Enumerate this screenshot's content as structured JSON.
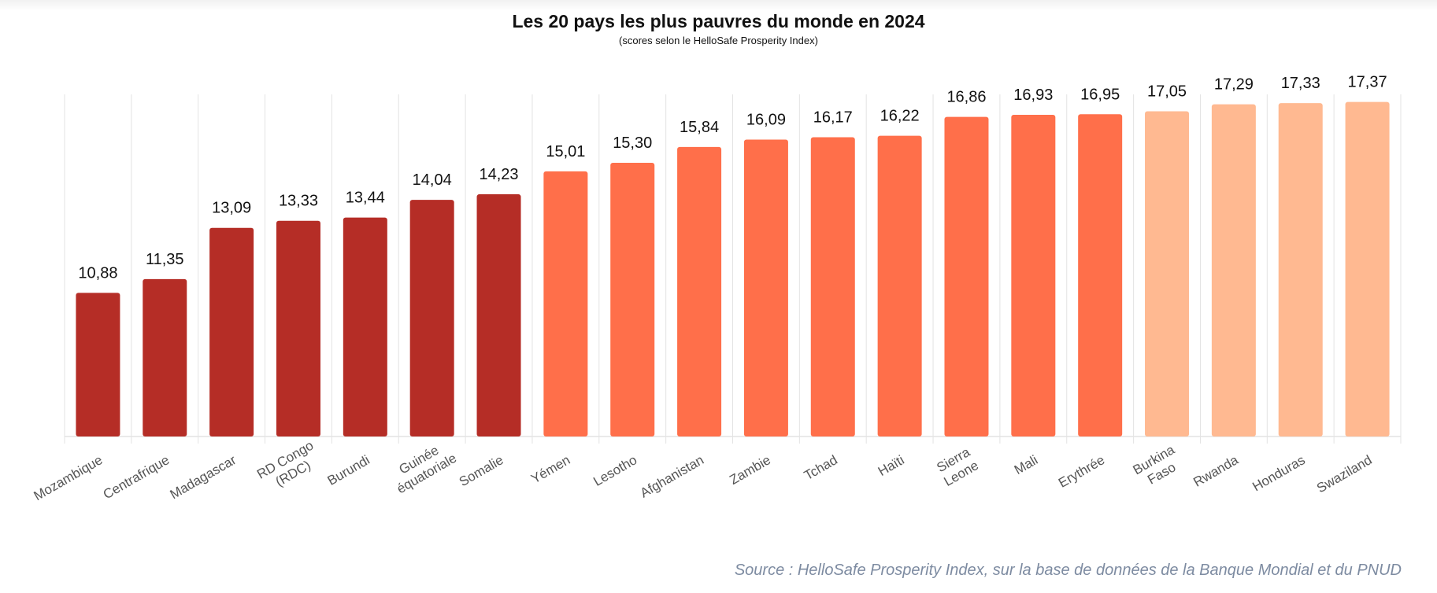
{
  "title": "Les 20 pays les plus pauvres du monde en 2024",
  "subtitle": "(scores selon le HelloSafe Prosperity Index)",
  "source": "Source : HelloSafe Prosperity Index, sur la base de données de la Banque Mondial et du PNUD",
  "colors": {
    "dark_red": "#b52d26",
    "orange": "#ff6f4a",
    "light_orange": "#ffb991",
    "grid": "#e3e3e3",
    "axis_label": "#555555",
    "value_label": "#111111",
    "source_text": "#7d8ba1"
  },
  "chart_data": {
    "type": "bar",
    "title": "Les 20 pays les plus pauvres du monde en 2024",
    "subtitle": "(scores selon le HelloSafe Prosperity Index)",
    "categories": [
      "Mozambique",
      "Centrafrique",
      "Madagascar",
      "RD Congo\n(RDC)",
      "Burundi",
      "Guinée\néquatoriale",
      "Somalie",
      "Yémen",
      "Lesotho",
      "Afghanistan",
      "Zambie",
      "Tchad",
      "Haïti",
      "Sierra\nLeone",
      "Mali",
      "Erythrée",
      "Burkina\nFaso",
      "Rwanda",
      "Honduras",
      "Swaziland"
    ],
    "values": [
      10.88,
      11.35,
      13.09,
      13.33,
      13.44,
      14.04,
      14.23,
      15.01,
      15.3,
      15.84,
      16.09,
      16.17,
      16.22,
      16.86,
      16.93,
      16.95,
      17.05,
      17.29,
      17.33,
      17.37
    ],
    "value_labels": [
      "10,88",
      "11,35",
      "13,09",
      "13,33",
      "13,44",
      "14,04",
      "14,23",
      "15,01",
      "15,30",
      "15,84",
      "16,09",
      "16,17",
      "16,22",
      "16,86",
      "16,93",
      "16,95",
      "17,05",
      "17,29",
      "17,33",
      "17,37"
    ],
    "color_groups": [
      "dark_red",
      "dark_red",
      "dark_red",
      "dark_red",
      "dark_red",
      "dark_red",
      "dark_red",
      "orange",
      "orange",
      "orange",
      "orange",
      "orange",
      "orange",
      "orange",
      "orange",
      "orange",
      "light_orange",
      "light_orange",
      "light_orange",
      "light_orange"
    ],
    "ylim": [
      6,
      18
    ],
    "grid": "vertical",
    "legend": "none"
  }
}
